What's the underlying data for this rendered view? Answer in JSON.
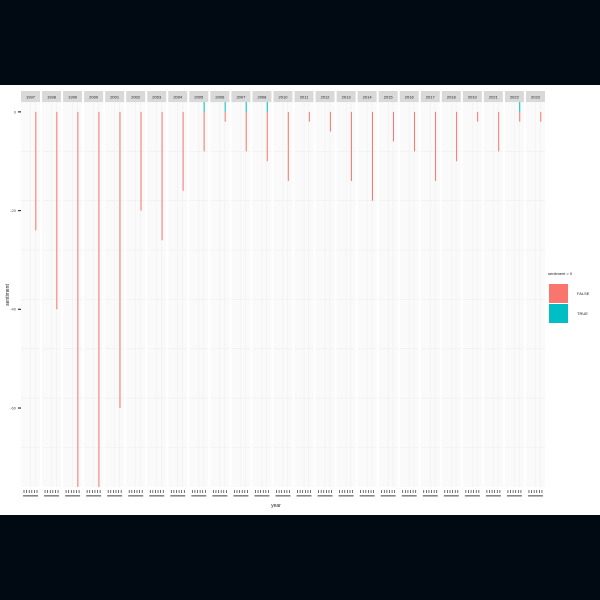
{
  "chart_data": {
    "type": "bar",
    "facet_by": "year",
    "xlabel": "year",
    "ylabel": "sentiment",
    "ylim": [
      -76,
      2
    ],
    "y_ticks": [
      0,
      -20,
      -40,
      -60
    ],
    "y_tick_labels": [
      "0",
      "-20",
      "-40",
      "-60"
    ],
    "x_tick_label_note": "tick labels are unreadable at this resolution",
    "grid": true,
    "legend": {
      "title": "sentiment > 0",
      "position": "right",
      "entries": [
        {
          "label": "FALSE",
          "color": "#F8766D"
        },
        {
          "label": "TRUE",
          "color": "#00BFC4"
        }
      ]
    },
    "panels": [
      {
        "year": "1997",
        "negative": -24,
        "positive": 0
      },
      {
        "year": "1998",
        "negative": -40,
        "positive": 0
      },
      {
        "year": "1999",
        "negative": -76,
        "positive": 0
      },
      {
        "year": "2000",
        "negative": -76,
        "positive": 0
      },
      {
        "year": "2001",
        "negative": -60,
        "positive": 0
      },
      {
        "year": "2002",
        "negative": -20,
        "positive": 0
      },
      {
        "year": "2003",
        "negative": -26,
        "positive": 0
      },
      {
        "year": "2004",
        "negative": -16,
        "positive": 0
      },
      {
        "year": "2005",
        "negative": -8,
        "positive": 2
      },
      {
        "year": "2006",
        "negative": -2,
        "positive": 2
      },
      {
        "year": "2007",
        "negative": -8,
        "positive": 2
      },
      {
        "year": "2008",
        "negative": -10,
        "positive": 2
      },
      {
        "year": "2010",
        "negative": -14,
        "positive": 0
      },
      {
        "year": "2011",
        "negative": -2,
        "positive": 0
      },
      {
        "year": "2012",
        "negative": -4,
        "positive": 0
      },
      {
        "year": "2013",
        "negative": -14,
        "positive": 0
      },
      {
        "year": "2014",
        "negative": -18,
        "positive": 0
      },
      {
        "year": "2015",
        "negative": -6,
        "positive": 0
      },
      {
        "year": "2016",
        "negative": -8,
        "positive": 0
      },
      {
        "year": "2017",
        "negative": -14,
        "positive": 0
      },
      {
        "year": "2018",
        "negative": -10,
        "positive": 0
      },
      {
        "year": "2019",
        "negative": -2,
        "positive": 0
      },
      {
        "year": "2021",
        "negative": -8,
        "positive": 0
      },
      {
        "year": "2022",
        "negative": -2,
        "positive": 2
      },
      {
        "year": "2023",
        "negative": -2,
        "positive": 0
      }
    ]
  }
}
